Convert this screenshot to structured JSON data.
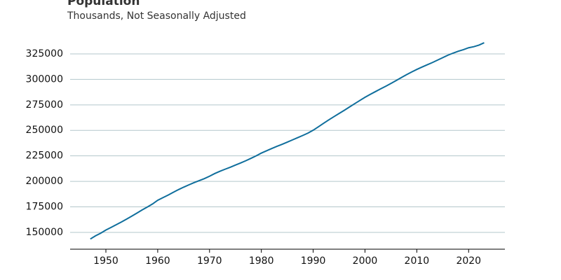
{
  "chart_data": {
    "type": "line",
    "title": "Population",
    "subtitle": "Thousands, Not Seasonally Adjusted",
    "x": [
      1947,
      1948,
      1949,
      1950,
      1951,
      1952,
      1953,
      1954,
      1955,
      1956,
      1957,
      1958,
      1959,
      1960,
      1961,
      1962,
      1963,
      1964,
      1965,
      1966,
      1967,
      1968,
      1969,
      1970,
      1971,
      1972,
      1973,
      1974,
      1975,
      1976,
      1977,
      1978,
      1979,
      1980,
      1981,
      1982,
      1983,
      1984,
      1985,
      1986,
      1987,
      1988,
      1989,
      1990,
      1991,
      1992,
      1993,
      1994,
      1995,
      1996,
      1997,
      1998,
      1999,
      2000,
      2001,
      2002,
      2003,
      2004,
      2005,
      2006,
      2007,
      2008,
      2009,
      2010,
      2011,
      2012,
      2013,
      2014,
      2015,
      2016,
      2017,
      2018,
      2019,
      2020,
      2021,
      2022,
      2023
    ],
    "series": [
      {
        "name": "Population",
        "color": "#0f6e9c",
        "values": [
          143500,
          146631,
          149188,
          152271,
          154878,
          157553,
          160184,
          163026,
          165931,
          168903,
          171984,
          174882,
          177830,
          181500,
          184000,
          186538,
          189242,
          191889,
          194303,
          196560,
          198712,
          200706,
          202677,
          205052,
          207661,
          209896,
          211909,
          213854,
          215973,
          218035,
          220239,
          222585,
          225055,
          227726,
          229966,
          232188,
          234307,
          236348,
          238466,
          240651,
          242804,
          245021,
          247342,
          250132,
          253493,
          256894,
          260255,
          263436,
          266557,
          269667,
          272912,
          276115,
          279295,
          282398,
          285225,
          287955,
          290626,
          293262,
          295993,
          298818,
          301696,
          304543,
          307240,
          309739,
          312040,
          314270,
          316490,
          318860,
          321300,
          323690,
          325740,
          327560,
          329150,
          331000,
          332050,
          333570,
          335900
        ]
      }
    ],
    "xlim": [
      1943.1,
      2027.0
    ],
    "ylim": [
      133500,
      343500
    ],
    "xticks": [
      1950,
      1960,
      1970,
      1980,
      1990,
      2000,
      2010,
      2020
    ],
    "yticks": [
      150000,
      175000,
      200000,
      225000,
      250000,
      275000,
      300000,
      325000
    ],
    "grid": true
  }
}
